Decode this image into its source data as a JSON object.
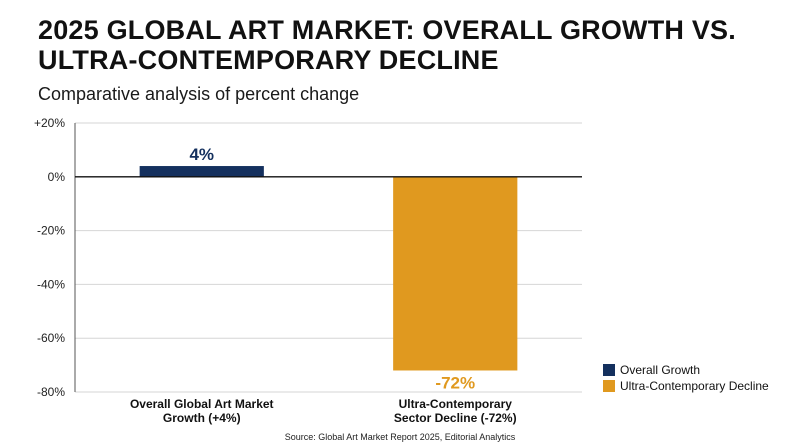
{
  "title": "2025 GLOBAL ART MARKET: OVERALL GROWTH VS. ULTRA-CONTEMPORARY DECLINE",
  "subtitle": "Comparative analysis of percent change",
  "source": "Source: Global Art Market Report 2025, Editorial Analytics",
  "chart_data": {
    "type": "bar",
    "categories": [
      [
        "Overall Global Art Market",
        "Growth (+4%)"
      ],
      [
        "Ultra-Contemporary",
        "Sector Decline (-72%)"
      ]
    ],
    "values": [
      4,
      -72
    ],
    "data_labels": [
      "4%",
      "-72%"
    ],
    "ylim": [
      -80,
      20
    ],
    "y_ticks": [
      20,
      0,
      -20,
      -40,
      -60,
      -80
    ],
    "y_tick_labels": [
      "+20%",
      "0%",
      "-20%",
      "-40%",
      "-60%",
      "-80%"
    ],
    "grid": true,
    "legend": {
      "placement": "bottom-right",
      "entries": [
        {
          "name": "Overall Growth",
          "color": "#14305e"
        },
        {
          "name": "Ultra-Contemporary Decline",
          "color": "#e0991f"
        }
      ]
    },
    "colors": [
      "#14305e",
      "#e0991f"
    ]
  }
}
